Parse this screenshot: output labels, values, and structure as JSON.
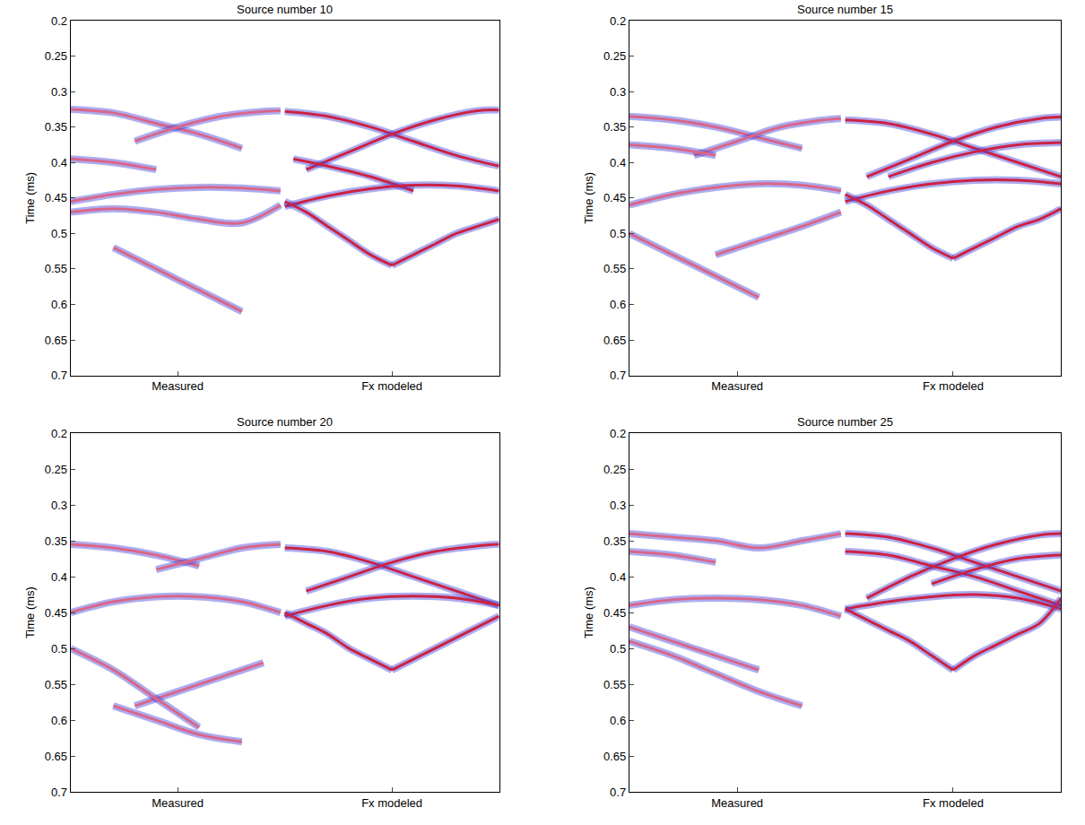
{
  "chart_data": [
    {
      "type": "line",
      "title": "Source number 10",
      "y_label": "Time (ms)",
      "xlim": [
        0,
        1
      ],
      "xticks": [
        {
          "value": 0.25,
          "label": "Measured"
        },
        {
          "value": 0.75,
          "label": "Fx modeled"
        }
      ],
      "ylim": [
        0.7,
        0.2
      ],
      "yticks": [
        0.2,
        0.25,
        0.3,
        0.35,
        0.4,
        0.45,
        0.5,
        0.55,
        0.6,
        0.65,
        0.7
      ],
      "grid": false,
      "series": [
        {
          "color": "#d9668a",
          "x": [
            0,
            0.1,
            0.2,
            0.3,
            0.4
          ],
          "values": [
            0.325,
            0.33,
            0.345,
            0.36,
            0.38
          ]
        },
        {
          "color": "#d9668a",
          "x": [
            0.15,
            0.25,
            0.35,
            0.45,
            0.49
          ],
          "values": [
            0.37,
            0.35,
            0.335,
            0.328,
            0.327
          ]
        },
        {
          "color": "#d9668a",
          "x": [
            0,
            0.1,
            0.2
          ],
          "values": [
            0.395,
            0.4,
            0.41
          ]
        },
        {
          "color": "#d9668a",
          "x": [
            0,
            0.1,
            0.2,
            0.3,
            0.4,
            0.49
          ],
          "values": [
            0.455,
            0.445,
            0.438,
            0.435,
            0.436,
            0.44
          ]
        },
        {
          "color": "#d9668a",
          "x": [
            0,
            0.1,
            0.2,
            0.3,
            0.4,
            0.49
          ],
          "values": [
            0.47,
            0.465,
            0.47,
            0.48,
            0.485,
            0.46
          ]
        },
        {
          "color": "#d9668a",
          "x": [
            0.1,
            0.2,
            0.3,
            0.4
          ],
          "values": [
            0.52,
            0.55,
            0.58,
            0.61
          ]
        },
        {
          "color": "#cc2244",
          "x": [
            0.5,
            0.6,
            0.7,
            0.8,
            0.9,
            1.0
          ],
          "values": [
            0.328,
            0.335,
            0.35,
            0.37,
            0.39,
            0.405
          ]
        },
        {
          "color": "#cc2244",
          "x": [
            0.55,
            0.65,
            0.75,
            0.85,
            0.95,
            1.0
          ],
          "values": [
            0.41,
            0.385,
            0.36,
            0.34,
            0.327,
            0.326
          ]
        },
        {
          "color": "#cc2244",
          "x": [
            0.52,
            0.6,
            0.7,
            0.8
          ],
          "values": [
            0.395,
            0.405,
            0.42,
            0.44
          ]
        },
        {
          "color": "#cc2244",
          "x": [
            0.5,
            0.6,
            0.7,
            0.8,
            0.9,
            1.0
          ],
          "values": [
            0.462,
            0.447,
            0.437,
            0.432,
            0.433,
            0.44
          ]
        },
        {
          "color": "#cc2244",
          "x": [
            0.5,
            0.55,
            0.6,
            0.65,
            0.7,
            0.75
          ],
          "values": [
            0.455,
            0.47,
            0.49,
            0.51,
            0.53,
            0.545
          ]
        },
        {
          "color": "#cc2244",
          "x": [
            0.75,
            0.8,
            0.85,
            0.9,
            0.95,
            1.0
          ],
          "values": [
            0.545,
            0.53,
            0.515,
            0.5,
            0.49,
            0.48
          ]
        }
      ]
    },
    {
      "type": "line",
      "title": "Source number 15",
      "y_label": "Time (ms)",
      "xlim": [
        0,
        1
      ],
      "xticks": [
        {
          "value": 0.25,
          "label": "Measured"
        },
        {
          "value": 0.75,
          "label": "Fx modeled"
        }
      ],
      "ylim": [
        0.7,
        0.2
      ],
      "yticks": [
        0.2,
        0.25,
        0.3,
        0.35,
        0.4,
        0.45,
        0.5,
        0.55,
        0.6,
        0.65,
        0.7
      ],
      "grid": false,
      "series": [
        {
          "color": "#d9668a",
          "x": [
            0,
            0.1,
            0.2,
            0.3,
            0.4
          ],
          "values": [
            0.335,
            0.34,
            0.35,
            0.365,
            0.38
          ]
        },
        {
          "color": "#d9668a",
          "x": [
            0.15,
            0.25,
            0.35,
            0.45,
            0.49
          ],
          "values": [
            0.39,
            0.37,
            0.35,
            0.34,
            0.338
          ]
        },
        {
          "color": "#d9668a",
          "x": [
            0,
            0.1,
            0.2
          ],
          "values": [
            0.375,
            0.38,
            0.39
          ]
        },
        {
          "color": "#d9668a",
          "x": [
            0,
            0.1,
            0.2,
            0.3,
            0.4,
            0.49
          ],
          "values": [
            0.46,
            0.445,
            0.435,
            0.43,
            0.432,
            0.44
          ]
        },
        {
          "color": "#d9668a",
          "x": [
            0.2,
            0.3,
            0.4,
            0.49
          ],
          "values": [
            0.53,
            0.51,
            0.49,
            0.47
          ]
        },
        {
          "color": "#d9668a",
          "x": [
            0,
            0.1,
            0.2,
            0.3
          ],
          "values": [
            0.5,
            0.53,
            0.56,
            0.59
          ]
        },
        {
          "color": "#cc2244",
          "x": [
            0.5,
            0.6,
            0.7,
            0.8,
            0.9,
            1.0
          ],
          "values": [
            0.34,
            0.345,
            0.36,
            0.38,
            0.4,
            0.42
          ]
        },
        {
          "color": "#cc2244",
          "x": [
            0.55,
            0.65,
            0.75,
            0.85,
            0.95,
            1.0
          ],
          "values": [
            0.42,
            0.395,
            0.37,
            0.35,
            0.338,
            0.336
          ]
        },
        {
          "color": "#cc2244",
          "x": [
            0.6,
            0.7,
            0.8,
            0.9,
            1.0
          ],
          "values": [
            0.42,
            0.4,
            0.385,
            0.375,
            0.372
          ]
        },
        {
          "color": "#cc2244",
          "x": [
            0.5,
            0.6,
            0.7,
            0.8,
            0.9,
            1.0
          ],
          "values": [
            0.455,
            0.44,
            0.43,
            0.425,
            0.425,
            0.43
          ]
        },
        {
          "color": "#cc2244",
          "x": [
            0.5,
            0.55,
            0.6,
            0.65,
            0.7,
            0.75
          ],
          "values": [
            0.445,
            0.46,
            0.48,
            0.5,
            0.52,
            0.535
          ]
        },
        {
          "color": "#cc2244",
          "x": [
            0.75,
            0.8,
            0.85,
            0.9,
            0.95,
            1.0
          ],
          "values": [
            0.535,
            0.52,
            0.505,
            0.49,
            0.48,
            0.465
          ]
        }
      ]
    },
    {
      "type": "line",
      "title": "Source number 20",
      "y_label": "Time (ms)",
      "xlim": [
        0,
        1
      ],
      "xticks": [
        {
          "value": 0.25,
          "label": "Measured"
        },
        {
          "value": 0.75,
          "label": "Fx modeled"
        }
      ],
      "ylim": [
        0.7,
        0.2
      ],
      "yticks": [
        0.2,
        0.25,
        0.3,
        0.35,
        0.4,
        0.45,
        0.5,
        0.55,
        0.6,
        0.65,
        0.7
      ],
      "grid": false,
      "series": [
        {
          "color": "#d9668a",
          "x": [
            0,
            0.1,
            0.2,
            0.3
          ],
          "values": [
            0.355,
            0.36,
            0.37,
            0.385
          ]
        },
        {
          "color": "#d9668a",
          "x": [
            0.2,
            0.3,
            0.4,
            0.49
          ],
          "values": [
            0.39,
            0.375,
            0.36,
            0.355
          ]
        },
        {
          "color": "#d9668a",
          "x": [
            0,
            0.1,
            0.2,
            0.3,
            0.4,
            0.49
          ],
          "values": [
            0.45,
            0.435,
            0.428,
            0.428,
            0.435,
            0.45
          ]
        },
        {
          "color": "#d9668a",
          "x": [
            0.15,
            0.25,
            0.35,
            0.45
          ],
          "values": [
            0.58,
            0.56,
            0.54,
            0.52
          ]
        },
        {
          "color": "#d9668a",
          "x": [
            0,
            0.1,
            0.2,
            0.3
          ],
          "values": [
            0.5,
            0.53,
            0.57,
            0.61
          ]
        },
        {
          "color": "#d9668a",
          "x": [
            0.1,
            0.2,
            0.3,
            0.4
          ],
          "values": [
            0.58,
            0.6,
            0.62,
            0.63
          ]
        },
        {
          "color": "#cc2244",
          "x": [
            0.5,
            0.6,
            0.7,
            0.8,
            0.9,
            1.0
          ],
          "values": [
            0.36,
            0.365,
            0.38,
            0.4,
            0.42,
            0.44
          ]
        },
        {
          "color": "#cc2244",
          "x": [
            0.55,
            0.65,
            0.75,
            0.85,
            0.95,
            1.0
          ],
          "values": [
            0.42,
            0.4,
            0.38,
            0.365,
            0.357,
            0.355
          ]
        },
        {
          "color": "#cc2244",
          "x": [
            0.5,
            0.6,
            0.7,
            0.8,
            0.9,
            1.0
          ],
          "values": [
            0.455,
            0.44,
            0.43,
            0.427,
            0.43,
            0.44
          ]
        },
        {
          "color": "#cc2244",
          "x": [
            0.5,
            0.55,
            0.6,
            0.65,
            0.7,
            0.75
          ],
          "values": [
            0.45,
            0.465,
            0.48,
            0.5,
            0.515,
            0.53
          ]
        },
        {
          "color": "#cc2244",
          "x": [
            0.75,
            0.8,
            0.85,
            0.9,
            0.95,
            1.0
          ],
          "values": [
            0.53,
            0.515,
            0.5,
            0.485,
            0.47,
            0.455
          ]
        }
      ]
    },
    {
      "type": "line",
      "title": "Source number 25",
      "y_label": "Time (ms)",
      "xlim": [
        0,
        1
      ],
      "xticks": [
        {
          "value": 0.25,
          "label": "Measured"
        },
        {
          "value": 0.75,
          "label": "Fx modeled"
        }
      ],
      "ylim": [
        0.7,
        0.2
      ],
      "yticks": [
        0.2,
        0.25,
        0.3,
        0.35,
        0.4,
        0.45,
        0.5,
        0.55,
        0.6,
        0.65,
        0.7
      ],
      "grid": false,
      "series": [
        {
          "color": "#d9668a",
          "x": [
            0,
            0.1,
            0.2,
            0.3,
            0.4,
            0.49
          ],
          "values": [
            0.34,
            0.345,
            0.35,
            0.36,
            0.35,
            0.34
          ]
        },
        {
          "color": "#d9668a",
          "x": [
            0,
            0.1,
            0.2
          ],
          "values": [
            0.365,
            0.37,
            0.38
          ]
        },
        {
          "color": "#d9668a",
          "x": [
            0,
            0.1,
            0.2,
            0.3,
            0.4,
            0.49
          ],
          "values": [
            0.44,
            0.432,
            0.43,
            0.432,
            0.44,
            0.455
          ]
        },
        {
          "color": "#d9668a",
          "x": [
            0,
            0.1,
            0.2,
            0.3
          ],
          "values": [
            0.47,
            0.49,
            0.51,
            0.53
          ]
        },
        {
          "color": "#d9668a",
          "x": [
            0,
            0.1,
            0.2,
            0.3,
            0.4
          ],
          "values": [
            0.49,
            0.51,
            0.535,
            0.56,
            0.58
          ]
        },
        {
          "color": "#cc2244",
          "x": [
            0.5,
            0.6,
            0.7,
            0.8,
            0.9,
            1.0
          ],
          "values": [
            0.34,
            0.345,
            0.36,
            0.38,
            0.4,
            0.42
          ]
        },
        {
          "color": "#cc2244",
          "x": [
            0.55,
            0.65,
            0.75,
            0.85,
            0.95,
            1.0
          ],
          "values": [
            0.43,
            0.4,
            0.375,
            0.355,
            0.342,
            0.34
          ]
        },
        {
          "color": "#cc2244",
          "x": [
            0.5,
            0.6,
            0.7,
            0.8,
            0.9,
            1.0
          ],
          "values": [
            0.365,
            0.37,
            0.385,
            0.4,
            0.42,
            0.44
          ]
        },
        {
          "color": "#cc2244",
          "x": [
            0.7,
            0.8,
            0.9,
            1.0
          ],
          "values": [
            0.41,
            0.39,
            0.375,
            0.37
          ]
        },
        {
          "color": "#cc2244",
          "x": [
            0.5,
            0.6,
            0.7,
            0.8,
            0.9,
            1.0
          ],
          "values": [
            0.445,
            0.435,
            0.428,
            0.425,
            0.43,
            0.445
          ]
        },
        {
          "color": "#cc2244",
          "x": [
            0.5,
            0.55,
            0.6,
            0.65,
            0.7,
            0.75
          ],
          "values": [
            0.445,
            0.46,
            0.475,
            0.49,
            0.51,
            0.53
          ]
        },
        {
          "color": "#cc2244",
          "x": [
            0.75,
            0.8,
            0.85,
            0.9,
            0.95,
            1.0
          ],
          "values": [
            0.53,
            0.51,
            0.495,
            0.48,
            0.465,
            0.43
          ]
        }
      ]
    }
  ]
}
